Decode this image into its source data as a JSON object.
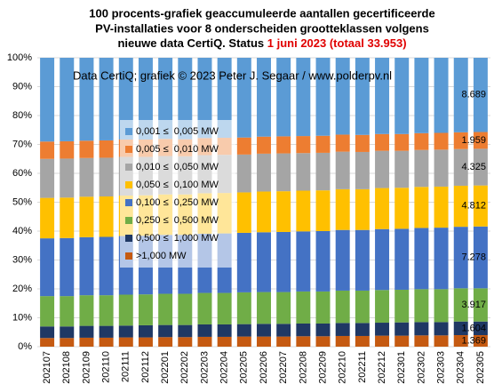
{
  "chart_data": {
    "type": "stacked_bar_100",
    "title_lines": [
      "100 procents-grafiek geaccumuleerde aantallen gecertificeerde",
      "PV-installaties voor 8 onderscheiden grootteklassen volgens",
      "nieuwe data CertiQ. Status"
    ],
    "title_highlight": "1 juni 2023 (totaal 33.953)",
    "annotation": "Data CertiQ; grafiek © 2023 Peter J. Segaar / www.polderpv.nl",
    "categories": [
      "202107",
      "202108",
      "202109",
      "202110",
      "202111",
      "202112",
      "202201",
      "202202",
      "202203",
      "202204",
      "202205",
      "202206",
      "202207",
      "202208",
      "202209",
      "202210",
      "202211",
      "202212",
      "202301",
      "202302",
      "202303",
      "202304",
      "202305"
    ],
    "series": [
      {
        "name": ">1,000 MW",
        "color": "#c55a11",
        "values": [
          3.0,
          3.0,
          3.1,
          3.1,
          3.2,
          3.2,
          3.3,
          3.3,
          3.4,
          3.4,
          3.5,
          3.5,
          3.5,
          3.6,
          3.6,
          3.7,
          3.7,
          3.8,
          3.8,
          3.9,
          3.9,
          4.0,
          4.0
        ]
      },
      {
        "name": "0,500 ≤  1,000 MW",
        "color": "#1f3864",
        "values": [
          4.0,
          4.0,
          4.1,
          4.1,
          4.1,
          4.2,
          4.2,
          4.2,
          4.3,
          4.3,
          4.3,
          4.4,
          4.4,
          4.4,
          4.4,
          4.5,
          4.5,
          4.5,
          4.6,
          4.6,
          4.6,
          4.7,
          4.7
        ]
      },
      {
        "name": "0,250 ≤  0,500 MW",
        "color": "#70ad47",
        "values": [
          10.5,
          10.5,
          10.6,
          10.6,
          10.7,
          10.7,
          10.8,
          10.8,
          10.9,
          10.9,
          11.0,
          11.0,
          11.0,
          11.1,
          11.1,
          11.2,
          11.2,
          11.3,
          11.3,
          11.4,
          11.4,
          11.5,
          11.5
        ]
      },
      {
        "name": "0,100 ≤  0,250 MW",
        "color": "#4472c4",
        "values": [
          20.0,
          20.1,
          20.1,
          20.2,
          20.3,
          20.3,
          20.4,
          20.4,
          20.5,
          20.6,
          20.6,
          20.7,
          20.8,
          20.8,
          20.9,
          21.0,
          21.0,
          21.1,
          21.1,
          21.2,
          21.3,
          21.3,
          21.4
        ]
      },
      {
        "name": "0,050 ≤  0,100 MW",
        "color": "#ffc000",
        "values": [
          14.0,
          14.0,
          14.0,
          14.0,
          14.0,
          14.0,
          14.0,
          14.0,
          14.0,
          14.0,
          14.0,
          14.1,
          14.1,
          14.1,
          14.1,
          14.1,
          14.1,
          14.2,
          14.2,
          14.2,
          14.2,
          14.2,
          14.2
        ]
      },
      {
        "name": "0,010 ≤  0,050 MW",
        "color": "#a5a5a5",
        "values": [
          13.5,
          13.5,
          13.4,
          13.4,
          13.4,
          13.3,
          13.3,
          13.2,
          13.2,
          13.2,
          13.1,
          13.1,
          13.1,
          13.0,
          13.0,
          13.0,
          12.9,
          12.9,
          12.8,
          12.8,
          12.8,
          12.7,
          12.7
        ]
      },
      {
        "name": "0,005 ≤  0,010 MW",
        "color": "#ed7d31",
        "values": [
          6.0,
          6.0,
          6.0,
          6.0,
          6.0,
          6.0,
          5.9,
          5.9,
          5.9,
          5.9,
          5.9,
          5.9,
          5.9,
          5.9,
          5.9,
          5.9,
          5.9,
          5.8,
          5.8,
          5.8,
          5.8,
          5.8,
          5.8
        ]
      },
      {
        "name": "0,001 ≤  0,005 MW",
        "color": "#5b9bd5",
        "values": [
          29.0,
          28.9,
          28.7,
          28.6,
          28.3,
          28.3,
          28.1,
          28.2,
          27.8,
          27.7,
          27.6,
          27.3,
          27.2,
          27.1,
          27.0,
          26.6,
          26.7,
          26.4,
          26.4,
          26.1,
          26.0,
          25.8,
          25.7
        ]
      }
    ],
    "end_labels": [
      "1.369",
      "1.604",
      "3.917",
      "7.278",
      "4.812",
      "4.325",
      "1.959",
      "8.689"
    ],
    "ylim": [
      0,
      100
    ],
    "yticks": [
      {
        "value": 0,
        "label": "0%"
      },
      {
        "value": 10,
        "label": "10%"
      },
      {
        "value": 20,
        "label": "20%"
      },
      {
        "value": 30,
        "label": "30%"
      },
      {
        "value": 40,
        "label": "40%"
      },
      {
        "value": 50,
        "label": "50%"
      },
      {
        "value": 60,
        "label": "60%"
      },
      {
        "value": 70,
        "label": "70%"
      },
      {
        "value": 80,
        "label": "80%"
      },
      {
        "value": 90,
        "label": "90%"
      },
      {
        "value": 100,
        "label": "100%"
      }
    ],
    "grid": true
  }
}
